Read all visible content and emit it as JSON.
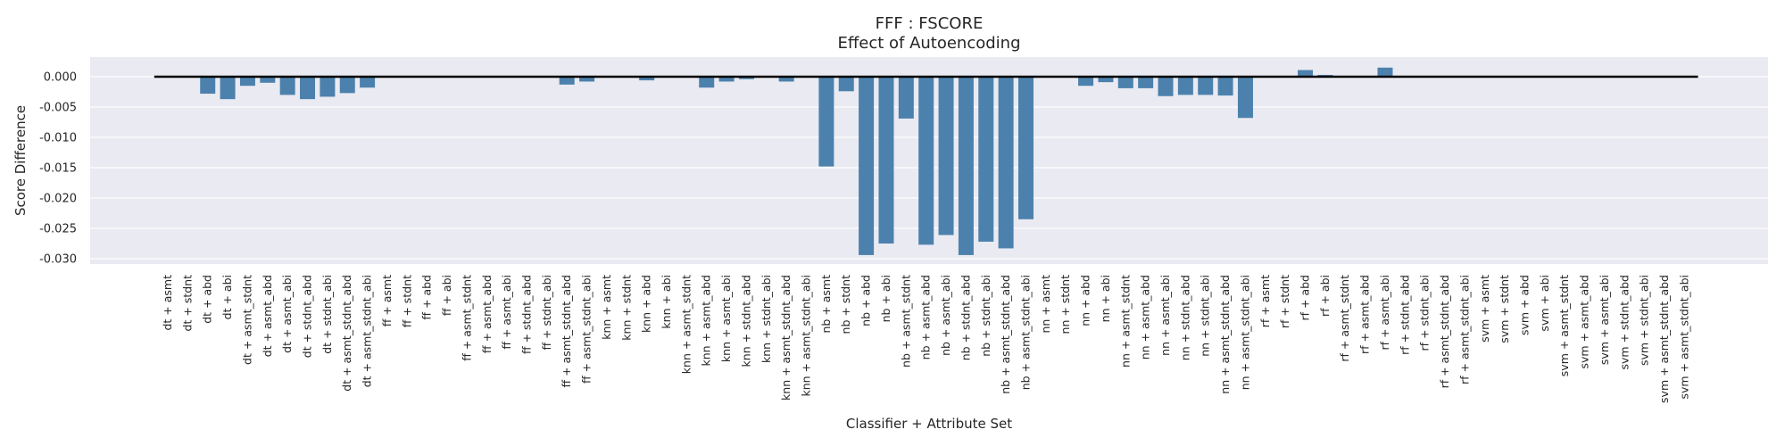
{
  "chart_data": {
    "type": "bar",
    "title": "FFF : FSCORE",
    "subtitle": "Effect of Autoencoding",
    "xlabel": "Classifier + Attribute Set",
    "ylabel": "Score Difference",
    "ylim": [
      -0.031,
      0.002
    ],
    "yticks": [
      0.0,
      -0.005,
      -0.01,
      -0.015,
      -0.02,
      -0.025,
      -0.03
    ],
    "ytick_labels": [
      "0.000",
      "-0.005",
      "-0.010",
      "-0.015",
      "-0.020",
      "-0.025",
      "-0.030"
    ],
    "grid": true,
    "bar_color": "#4c81ad",
    "plot_background": "#eaeaf2",
    "baseline_color": "#000000",
    "categories": [
      "dt + asmt",
      "dt + stdnt",
      "dt + abd",
      "dt + abi",
      "dt + asmt_stdnt",
      "dt + asmt_abd",
      "dt + asmt_abi",
      "dt + stdnt_abd",
      "dt + stdnt_abi",
      "dt + asmt_stdnt_abd",
      "dt + asmt_stdnt_abi",
      "ff + asmt",
      "ff + stdnt",
      "ff + abd",
      "ff + abi",
      "ff + asmt_stdnt",
      "ff + asmt_abd",
      "ff + asmt_abi",
      "ff + stdnt_abd",
      "ff + stdnt_abi",
      "ff + asmt_stdnt_abd",
      "ff + asmt_stdnt_abi",
      "knn + asmt",
      "knn + stdnt",
      "knn + abd",
      "knn + abi",
      "knn + asmt_stdnt",
      "knn + asmt_abd",
      "knn + asmt_abi",
      "knn + stdnt_abd",
      "knn + stdnt_abi",
      "knn + asmt_stdnt_abd",
      "knn + asmt_stdnt_abi",
      "nb + asmt",
      "nb + stdnt",
      "nb + abd",
      "nb + abi",
      "nb + asmt_stdnt",
      "nb + asmt_abd",
      "nb + asmt_abi",
      "nb + stdnt_abd",
      "nb + stdnt_abi",
      "nb + asmt_stdnt_abd",
      "nb + asmt_stdnt_abi",
      "nn + asmt",
      "nn + stdnt",
      "nn + abd",
      "nn + abi",
      "nn + asmt_stdnt",
      "nn + asmt_abd",
      "nn + asmt_abi",
      "nn + stdnt_abd",
      "nn + stdnt_abi",
      "nn + asmt_stdnt_abd",
      "nn + asmt_stdnt_abi",
      "rf + asmt",
      "rf + stdnt",
      "rf + abd",
      "rf + abi",
      "rf + asmt_stdnt",
      "rf + asmt_abd",
      "rf + asmt_abi",
      "rf + stdnt_abd",
      "rf + stdnt_abi",
      "rf + asmt_stdnt_abd",
      "rf + asmt_stdnt_abi",
      "svm + asmt",
      "svm + stdnt",
      "svm + abd",
      "svm + abi",
      "svm + asmt_stdnt",
      "svm + asmt_abd",
      "svm + asmt_abi",
      "svm + stdnt_abd",
      "svm + stdnt_abi",
      "svm + asmt_stdnt_abd",
      "svm + asmt_stdnt_abi"
    ],
    "values": [
      0.0,
      0.0,
      -0.0028,
      -0.0037,
      -0.0015,
      -0.001,
      -0.003,
      -0.0037,
      -0.0033,
      -0.0027,
      -0.0018,
      0.0,
      0.0,
      0.0,
      0.0,
      0.0,
      0.0,
      0.0,
      0.0,
      0.0,
      -0.0013,
      -0.0008,
      0.0,
      0.0,
      -0.0006,
      0.0,
      0.0,
      -0.0018,
      -0.0008,
      -0.0004,
      0.0,
      -0.0008,
      0.0,
      -0.0148,
      -0.0024,
      -0.0294,
      -0.0275,
      -0.0069,
      -0.0277,
      -0.0261,
      -0.0294,
      -0.0272,
      -0.0283,
      -0.0235,
      0.0,
      0.0,
      -0.0015,
      -0.0009,
      -0.0019,
      -0.0019,
      -0.0032,
      -0.003,
      -0.003,
      -0.0031,
      -0.0068,
      0.0,
      0.0,
      0.0011,
      0.0003,
      0.0,
      0.0,
      0.0015,
      0.0,
      0.0,
      0.0,
      0.0,
      0.0,
      0.0,
      0.0,
      0.0,
      0.0,
      0.0,
      0.0,
      0.0,
      0.0,
      0.0,
      0.0
    ]
  }
}
